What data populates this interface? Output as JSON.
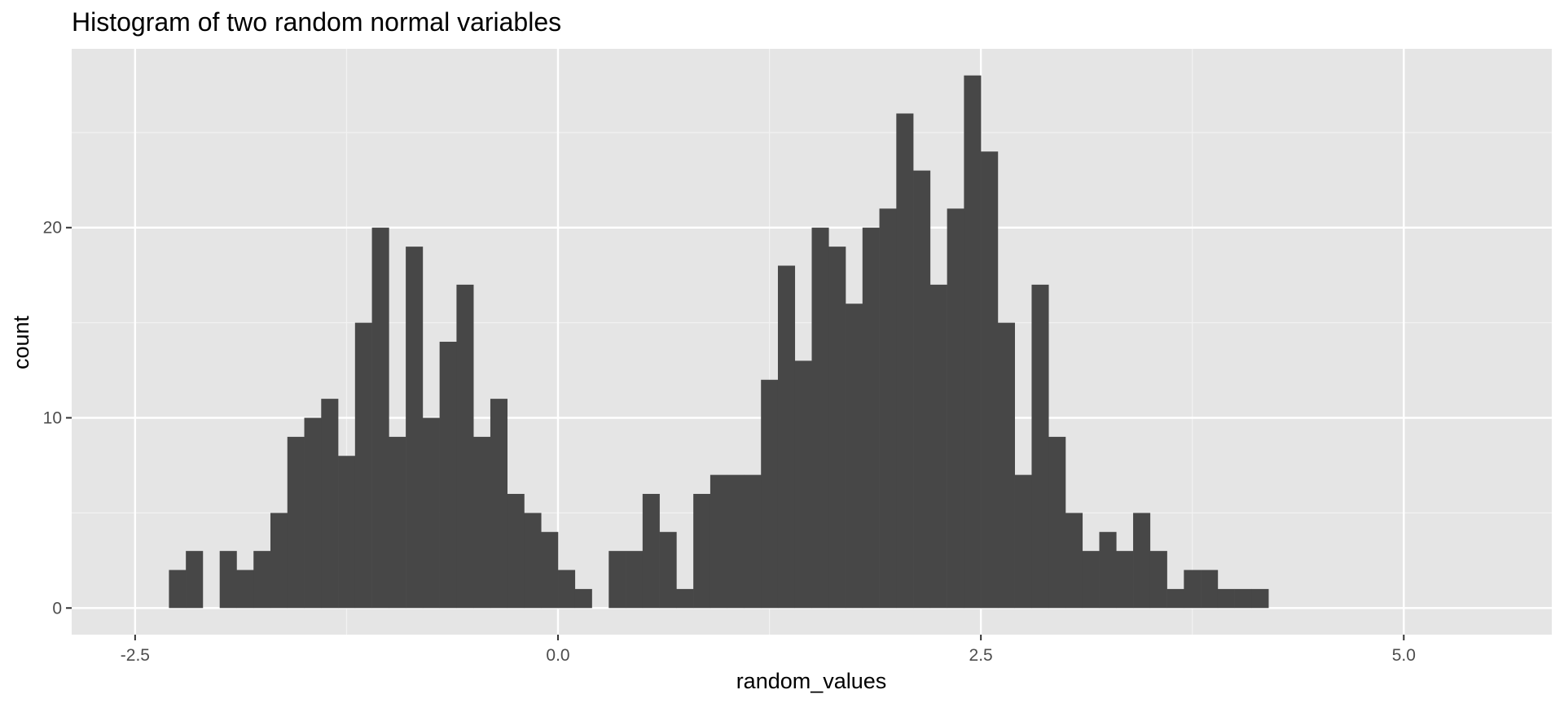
{
  "chart_data": {
    "type": "bar",
    "title": "Histogram of two random normal variables",
    "xlabel": "random_values",
    "ylabel": "count",
    "xlim": [
      -2.875,
      5.875
    ],
    "ylim": [
      -1.4,
      29.4
    ],
    "binwidth": 0.1,
    "bins_start": -2.3,
    "counts": [
      2,
      3,
      0,
      3,
      2,
      3,
      5,
      9,
      10,
      11,
      8,
      15,
      20,
      9,
      19,
      10,
      14,
      17,
      9,
      11,
      6,
      5,
      4,
      2,
      1,
      0,
      3,
      3,
      6,
      4,
      1,
      6,
      7,
      7,
      7,
      12,
      18,
      13,
      20,
      19,
      16,
      20,
      21,
      26,
      23,
      17,
      21,
      28,
      24,
      15,
      7,
      17,
      9,
      5,
      3,
      4,
      3,
      5,
      3,
      1,
      2,
      2,
      1,
      1,
      1
    ],
    "x_ticks": [
      -2.5,
      0.0,
      2.5,
      5.0
    ],
    "x_tick_labels": [
      "-2.5",
      "0.0",
      "2.5",
      "5.0"
    ],
    "y_ticks": [
      0,
      10,
      20
    ],
    "y_tick_labels": [
      "0",
      "10",
      "20"
    ],
    "grid": true,
    "colors": {
      "panel_background": "#e5e5e5",
      "grid_major": "#ffffff",
      "grid_minor": "#f2f2f2",
      "bar_fill": "#474747",
      "tick_text": "#4d4d4d",
      "tick_mark": "#333333"
    }
  }
}
